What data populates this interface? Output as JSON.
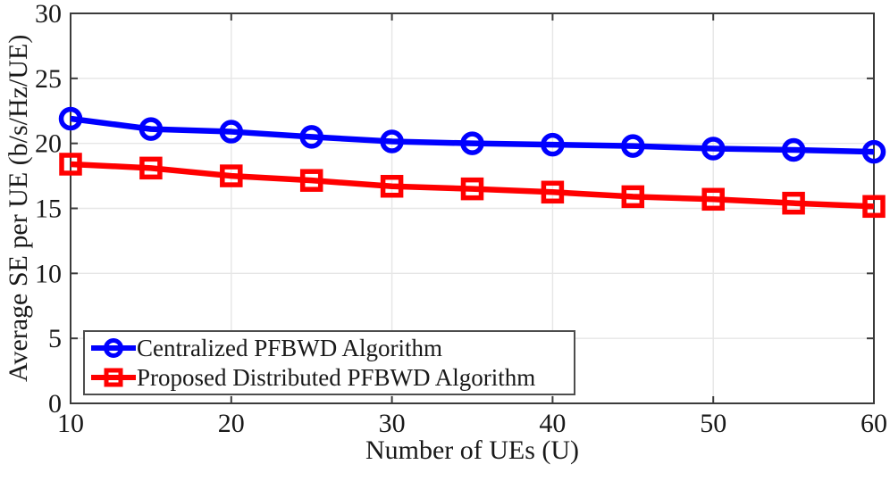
{
  "chart_data": {
    "type": "line",
    "title": "",
    "xlabel": "Number of UEs (U)",
    "ylabel": "Average SE per UE (b/s/Hz/UE)",
    "x": [
      10,
      15,
      20,
      25,
      30,
      35,
      40,
      45,
      50,
      55,
      60
    ],
    "xlim": [
      10,
      60
    ],
    "ylim": [
      0,
      30
    ],
    "xticks": [
      10,
      20,
      30,
      40,
      50,
      60
    ],
    "yticks": [
      0,
      5,
      10,
      15,
      20,
      25,
      30
    ],
    "grid": "on",
    "legend_position": "bottom-left",
    "series": [
      {
        "name": "Centralized PFBWD Algorithm",
        "color": "#0000ff",
        "marker": "circle",
        "values": [
          21.9,
          21.1,
          20.9,
          20.5,
          20.15,
          20.0,
          19.9,
          19.8,
          19.6,
          19.5,
          19.35
        ]
      },
      {
        "name": "Proposed Distributed PFBWD Algorithm",
        "color": "#ff0000",
        "marker": "square",
        "values": [
          18.4,
          18.1,
          17.5,
          17.15,
          16.7,
          16.5,
          16.25,
          15.9,
          15.7,
          15.4,
          15.15
        ]
      }
    ]
  },
  "style_colors": {
    "grid": "#e6e6e6",
    "axis": "#3b3b3b",
    "tick_text": "#191919",
    "legend_border": "#4d4d4d",
    "background": "#ffffff"
  }
}
